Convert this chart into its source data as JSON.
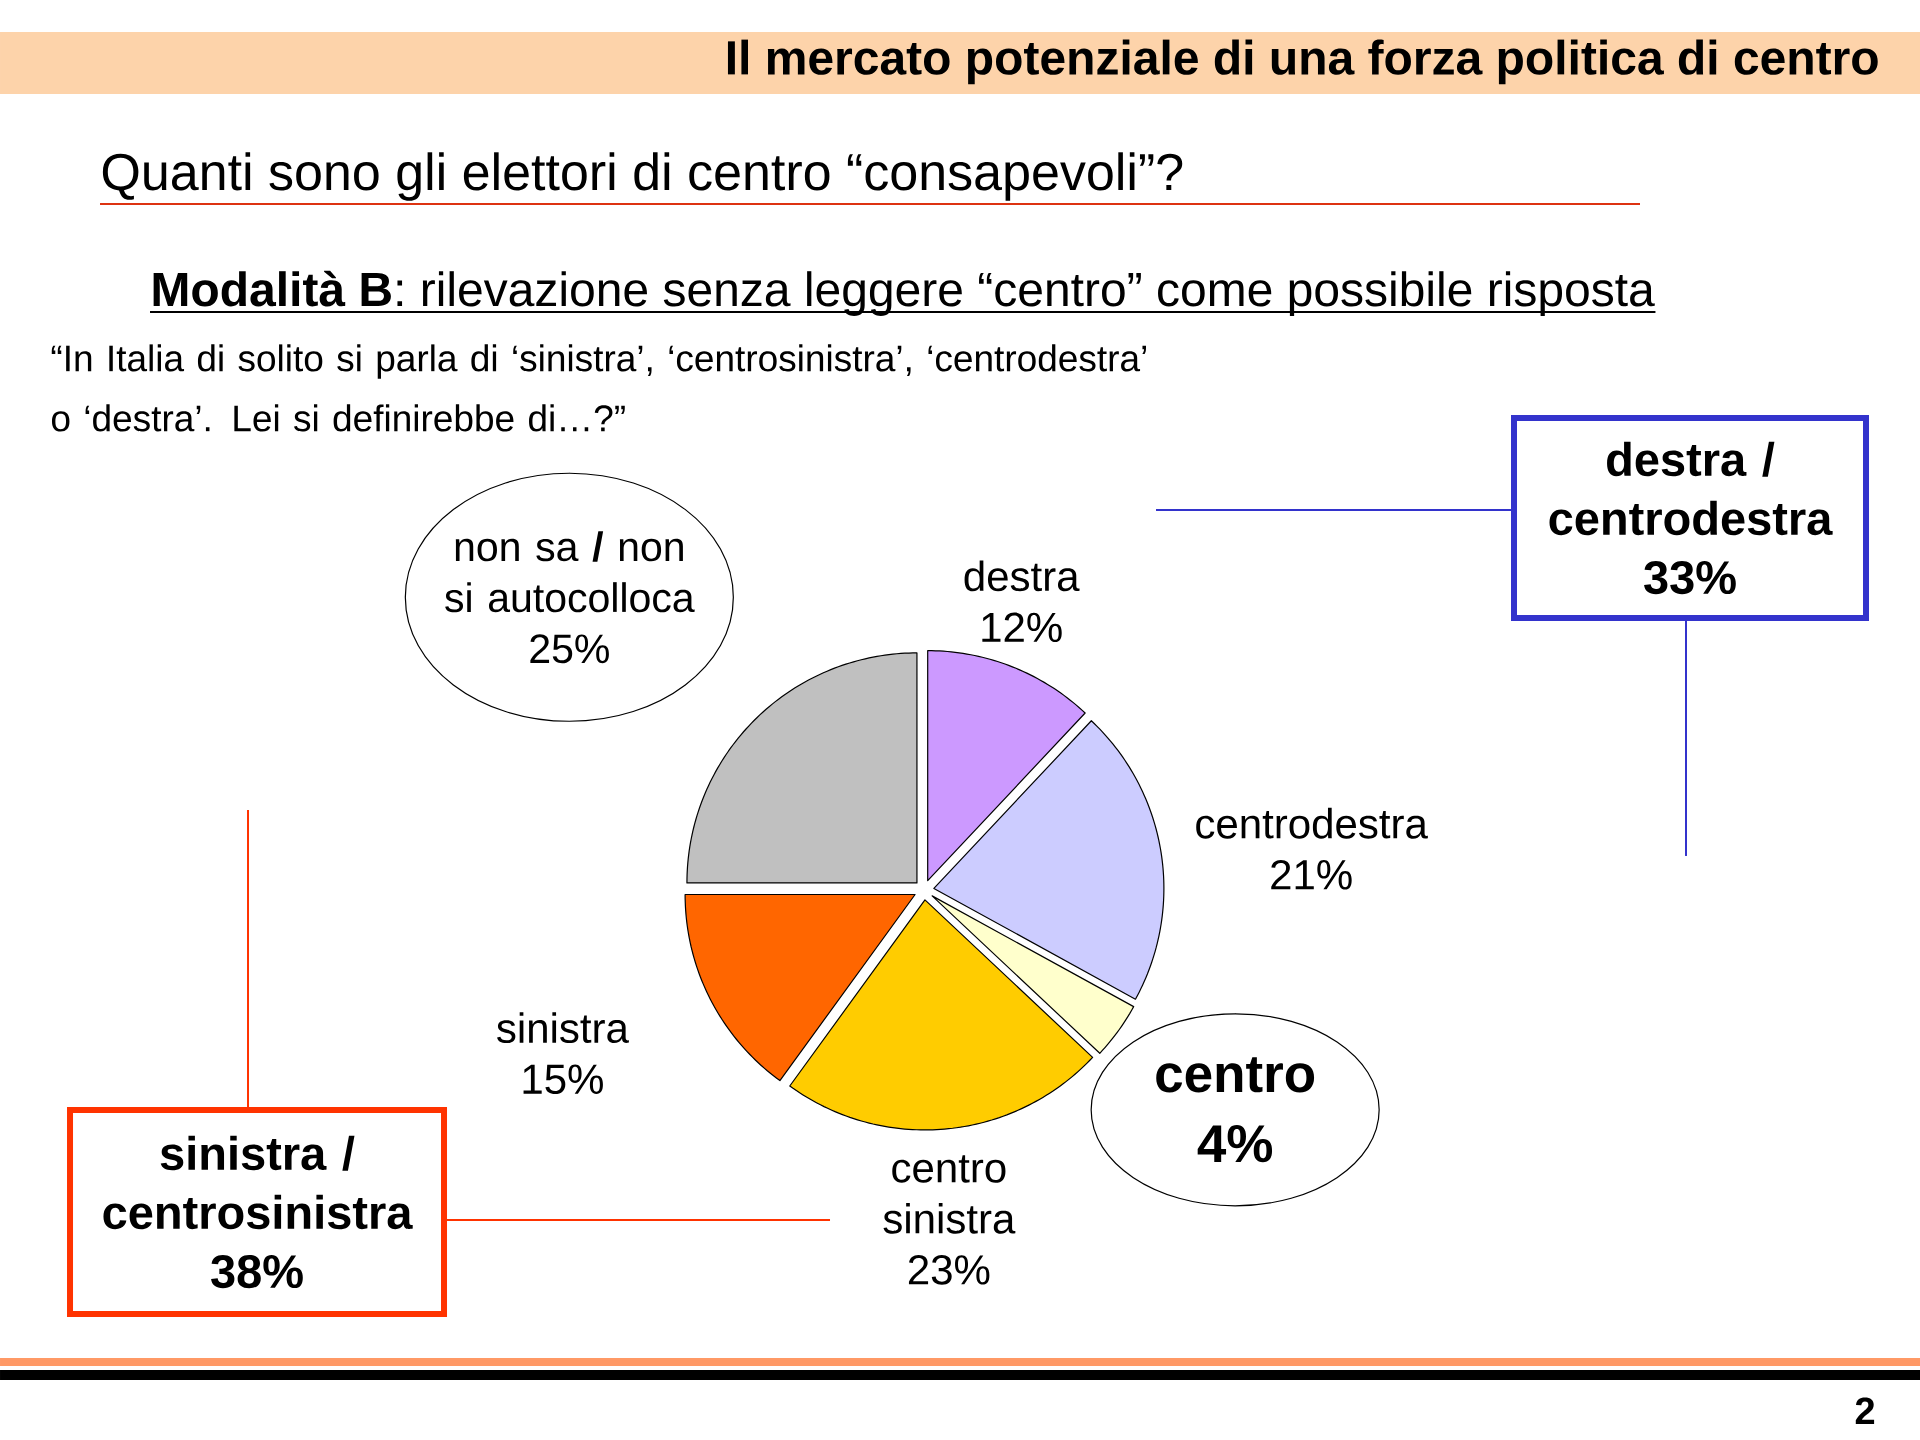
{
  "chart_data": {
    "type": "pie",
    "title": "Il mercato potenziale di una forza politica di centro",
    "subtitle": "Quanti sono gli elettori di centro “consapevoli”?",
    "categories": [
      "destra",
      "centrodestra",
      "centro",
      "centro sinistra",
      "sinistra",
      "non sa **/** non si autocolloca"
    ],
    "values": [
      12,
      21,
      4,
      23,
      15,
      25
    ],
    "value_labels": [
      "12%",
      "21%",
      "4%",
      "23%",
      "15%",
      "25%"
    ],
    "colors": [
      "#cc99ff",
      "#ccccff",
      "#ffffcc",
      "#ffcc00",
      "#ff6600",
      "#c0c0c0"
    ],
    "annotations": [
      "**Modalità B**: rilevazione senza leggere “centro” come possibile risposta",
      "“In Italia di solito si parla di ‘sinistra’, ‘centrosinistra’, ‘centrodestra’ o ‘destra’. Lei si definirebbe di…?”",
      "destra / centrodestra 33%",
      "sinistra / centrosinistra 38%",
      "2"
    ]
  }
}
